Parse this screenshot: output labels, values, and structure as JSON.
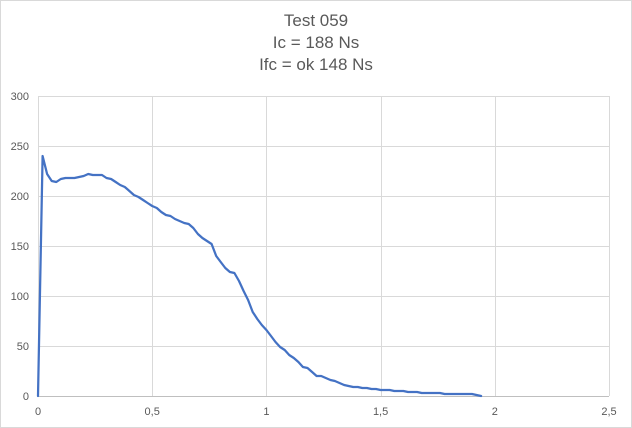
{
  "chart_data": {
    "type": "line",
    "title_lines": [
      "Test 059",
      "Ic = 188 Ns",
      "Ifc = ok 148 Ns"
    ],
    "xlabel": "",
    "ylabel": "",
    "xlim": [
      0,
      2.5
    ],
    "ylim": [
      0,
      300
    ],
    "x_ticks": [
      0,
      0.5,
      1,
      1.5,
      2,
      2.5
    ],
    "x_tick_labels": [
      "0",
      "0,5",
      "1",
      "1,5",
      "2",
      "2,5"
    ],
    "y_ticks": [
      0,
      50,
      100,
      150,
      200,
      250,
      300
    ],
    "y_tick_labels": [
      "0",
      "50",
      "100",
      "150",
      "200",
      "250",
      "300"
    ],
    "grid": "vertical-and-horizontal",
    "legend": "none",
    "line_color": "#4472c4",
    "grid_color": "#d9d9d9",
    "series": [
      {
        "x": [
          0,
          0.02,
          0.04,
          0.06,
          0.08,
          0.1,
          0.12,
          0.14,
          0.16,
          0.18,
          0.2,
          0.22,
          0.24,
          0.26,
          0.28,
          0.3,
          0.32,
          0.34,
          0.36,
          0.38,
          0.4,
          0.42,
          0.44,
          0.46,
          0.48,
          0.5,
          0.52,
          0.54,
          0.56,
          0.58,
          0.6,
          0.62,
          0.64,
          0.66,
          0.68,
          0.7,
          0.72,
          0.74,
          0.76,
          0.78,
          0.8,
          0.82,
          0.84,
          0.86,
          0.88,
          0.9,
          0.92,
          0.94,
          0.96,
          0.98,
          1,
          1.02,
          1.04,
          1.06,
          1.08,
          1.1,
          1.12,
          1.14,
          1.16,
          1.18,
          1.2,
          1.22,
          1.24,
          1.26,
          1.28,
          1.3,
          1.32,
          1.34,
          1.36,
          1.38,
          1.4,
          1.42,
          1.44,
          1.46,
          1.48,
          1.5,
          1.52,
          1.54,
          1.56,
          1.58,
          1.6,
          1.62,
          1.64,
          1.66,
          1.68,
          1.7,
          1.72,
          1.74,
          1.76,
          1.78,
          1.8,
          1.82,
          1.84,
          1.86,
          1.88,
          1.9,
          1.92,
          1.94
        ],
        "y": [
          0,
          240,
          222,
          215,
          214,
          217,
          218,
          218,
          218,
          219,
          220,
          222,
          221,
          221,
          221,
          218,
          217,
          214,
          211,
          209,
          205,
          201,
          199,
          196,
          193,
          190,
          188,
          184,
          181,
          180,
          177,
          175,
          173,
          172,
          168,
          162,
          158,
          155,
          152,
          140,
          134,
          128,
          124,
          123,
          115,
          105,
          96,
          84,
          77,
          71,
          66,
          60,
          54,
          49,
          46,
          41,
          38,
          34,
          29,
          28,
          24,
          20,
          20,
          18,
          16,
          15,
          13,
          11,
          10,
          9,
          9,
          8,
          8,
          7,
          7,
          6,
          6,
          6,
          5,
          5,
          5,
          4,
          4,
          4,
          3,
          3,
          3,
          3,
          3,
          2,
          2,
          2,
          2,
          2,
          2,
          2,
          1,
          0
        ]
      }
    ]
  }
}
